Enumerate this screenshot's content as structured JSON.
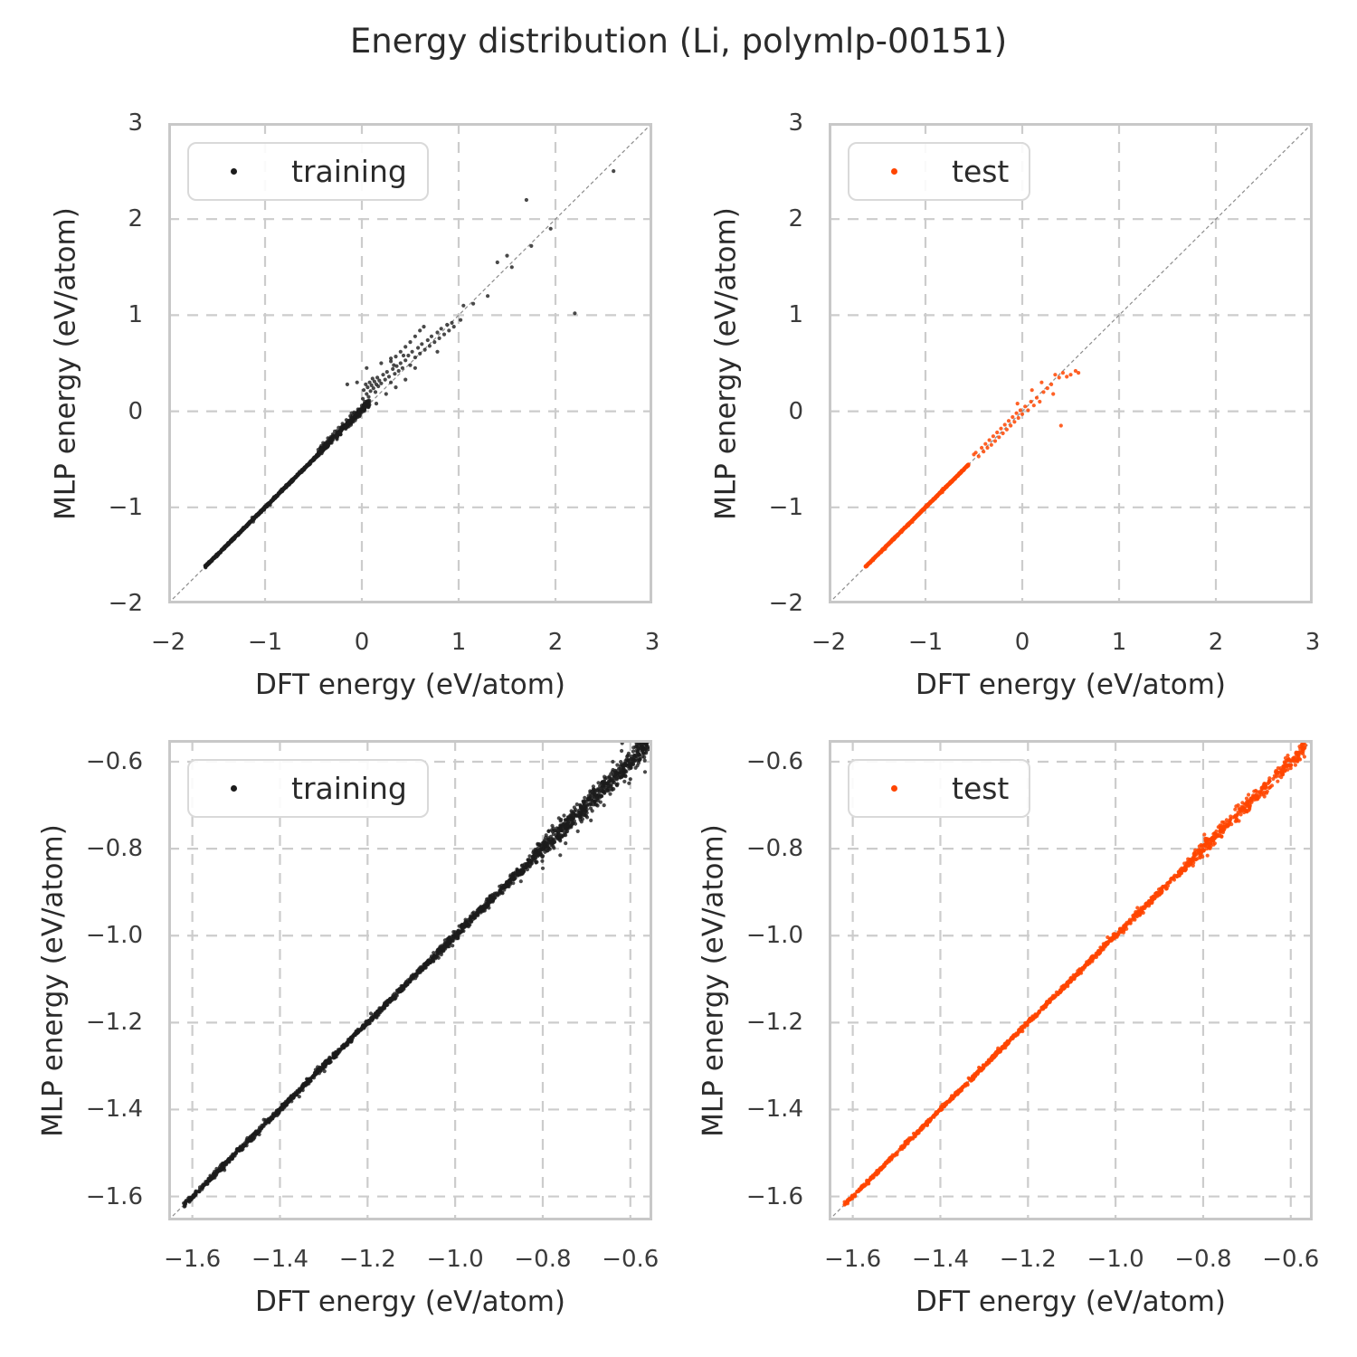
{
  "title": "Energy distribution (Li, polymlp-00151)",
  "styles": {
    "background": "#ffffff",
    "text_color": "#2b2b2b",
    "tick_color": "#3b3b3b",
    "grid_color": "#cccccc",
    "spine_color": "#c8c8c8",
    "identity_color": "#8c8c8c",
    "legend_border": "#d9d9d9",
    "training_color": "#1c1c1c",
    "test_color": "#ff4500"
  },
  "chart_data": [
    {
      "id": "top-left",
      "type": "scatter",
      "legend_label": "training",
      "color": "#1c1c1c",
      "opacity": 0.8,
      "xlabel": "DFT energy (eV/atom)",
      "ylabel": "MLP energy (eV/atom)",
      "xlim": [
        -2,
        3
      ],
      "ylim": [
        -2,
        3
      ],
      "xticks": [
        -2,
        -1,
        0,
        1,
        2,
        3
      ],
      "xtick_labels": [
        "−2",
        "−1",
        "0",
        "1",
        "2",
        "3"
      ],
      "yticks": [
        3,
        2,
        1,
        0,
        -1,
        -2
      ],
      "ytick_labels": [
        "3",
        "2",
        "1",
        "0",
        "−1",
        "−2"
      ],
      "grid": "dashed",
      "legend_position": "upper left",
      "identity_line": true,
      "seed": 42,
      "diagonal_bands": [
        {
          "from": -1.62,
          "to": -0.45,
          "count": 820,
          "jitter": 0.006
        },
        {
          "from": -0.45,
          "to": 0.08,
          "count": 270,
          "jitter": 0.02,
          "bias": 0.012
        }
      ],
      "points": [
        [
          -0.45,
          -0.4
        ],
        [
          -0.42,
          -0.36
        ],
        [
          -0.4,
          -0.33
        ],
        [
          -0.38,
          -0.36
        ],
        [
          -0.35,
          -0.28
        ],
        [
          -0.33,
          -0.3
        ],
        [
          -0.3,
          -0.24
        ],
        [
          -0.28,
          -0.21
        ],
        [
          -0.26,
          -0.25
        ],
        [
          -0.24,
          -0.17
        ],
        [
          -0.22,
          -0.2
        ],
        [
          -0.2,
          -0.13
        ],
        [
          -0.18,
          -0.16
        ],
        [
          -0.16,
          -0.09
        ],
        [
          -0.14,
          -0.12
        ],
        [
          -0.12,
          -0.05
        ],
        [
          -0.1,
          -0.08
        ],
        [
          -0.08,
          -0.01
        ],
        [
          -0.06,
          -0.04
        ],
        [
          -0.04,
          0.02
        ],
        [
          -0.02,
          -0.01
        ],
        [
          0,
          0.06
        ],
        [
          0.01,
          0.13
        ],
        [
          0.02,
          0.22
        ],
        [
          0.03,
          0.1
        ],
        [
          0.04,
          0.28
        ],
        [
          0.05,
          0.18
        ],
        [
          0.06,
          0.25
        ],
        [
          0.07,
          0.15
        ],
        [
          0.08,
          0.3
        ],
        [
          0.09,
          0.21
        ],
        [
          0.1,
          0.27
        ],
        [
          0.11,
          0.34
        ],
        [
          0.12,
          0.24
        ],
        [
          0.13,
          0.31
        ],
        [
          0.14,
          0.2
        ],
        [
          0.15,
          0.28
        ],
        [
          0.16,
          0.35
        ],
        [
          0.17,
          0.26
        ],
        [
          0.18,
          0.32
        ],
        [
          0.2,
          0.29
        ],
        [
          0.22,
          0.38
        ],
        [
          0.24,
          0.33
        ],
        [
          0.26,
          0.41
        ],
        [
          0.28,
          0.36
        ],
        [
          0.3,
          0.3
        ],
        [
          0.32,
          0.44
        ],
        [
          0.34,
          0.39
        ],
        [
          0.36,
          0.47
        ],
        [
          0.38,
          0.42
        ],
        [
          0.4,
          0.5
        ],
        [
          0.42,
          0.45
        ],
        [
          0.45,
          0.53
        ],
        [
          0.48,
          0.58
        ],
        [
          0.5,
          0.48
        ],
        [
          0.52,
          0.62
        ],
        [
          0.55,
          0.56
        ],
        [
          0.58,
          0.66
        ],
        [
          0.6,
          0.6
        ],
        [
          0.62,
          0.7
        ],
        [
          0.65,
          0.64
        ],
        [
          0.68,
          0.74
        ],
        [
          0.7,
          0.68
        ],
        [
          0.72,
          0.78
        ],
        [
          0.75,
          0.72
        ],
        [
          0.78,
          0.82
        ],
        [
          0.8,
          0.76
        ],
        [
          0.82,
          0.86
        ],
        [
          0.85,
          0.8
        ],
        [
          0.88,
          0.9
        ],
        [
          0.9,
          0.84
        ],
        [
          0.93,
          0.92
        ],
        [
          0.95,
          0.88
        ],
        [
          0.25,
          0.18
        ],
        [
          0.35,
          0.25
        ],
        [
          0.55,
          0.45
        ],
        [
          0.78,
          0.62
        ],
        [
          0.15,
          0.08
        ],
        [
          0.45,
          0.33
        ],
        [
          -0.15,
          0.28
        ],
        [
          -0.05,
          0.3
        ],
        [
          0.05,
          0.45
        ],
        [
          0.3,
          0.55
        ],
        [
          0.2,
          0.5
        ],
        [
          0.3,
          0.52
        ],
        [
          0.35,
          0.57
        ],
        [
          0.4,
          0.62
        ],
        [
          0.45,
          0.67
        ],
        [
          0.5,
          0.72
        ],
        [
          0.55,
          0.78
        ],
        [
          0.6,
          0.84
        ],
        [
          0.64,
          0.88
        ],
        [
          0.33,
          0.48
        ],
        [
          0.43,
          0.58
        ],
        [
          1.02,
          0.95
        ],
        [
          1.05,
          1.1
        ],
        [
          1.15,
          1.12
        ],
        [
          1.3,
          1.2
        ],
        [
          1.4,
          1.55
        ],
        [
          1.5,
          1.62
        ],
        [
          1.55,
          1.5
        ],
        [
          1.7,
          2.2
        ],
        [
          1.75,
          1.72
        ],
        [
          1.95,
          1.9
        ],
        [
          2.2,
          1.02
        ],
        [
          2.6,
          2.5
        ]
      ]
    },
    {
      "id": "top-right",
      "type": "scatter",
      "legend_label": "test",
      "color": "#ff4500",
      "opacity": 0.85,
      "xlabel": "DFT energy (eV/atom)",
      "ylabel": "MLP energy (eV/atom)",
      "xlim": [
        -2,
        3
      ],
      "ylim": [
        -2,
        3
      ],
      "xticks": [
        -2,
        -1,
        0,
        1,
        2,
        3
      ],
      "xtick_labels": [
        "−2",
        "−1",
        "0",
        "1",
        "2",
        "3"
      ],
      "yticks": [
        3,
        2,
        1,
        0,
        -1,
        -2
      ],
      "ytick_labels": [
        "3",
        "2",
        "1",
        "0",
        "−1",
        "−2"
      ],
      "grid": "dashed",
      "legend_position": "upper left",
      "identity_line": true,
      "seed": 7,
      "diagonal_bands": [
        {
          "from": -1.62,
          "to": -0.55,
          "count": 820,
          "jitter": 0.004
        }
      ],
      "points": [
        [
          -0.5,
          -0.45
        ],
        [
          -0.48,
          -0.43
        ],
        [
          -0.45,
          -0.47
        ],
        [
          -0.42,
          -0.38
        ],
        [
          -0.4,
          -0.42
        ],
        [
          -0.38,
          -0.34
        ],
        [
          -0.36,
          -0.38
        ],
        [
          -0.34,
          -0.3
        ],
        [
          -0.32,
          -0.35
        ],
        [
          -0.3,
          -0.26
        ],
        [
          -0.28,
          -0.31
        ],
        [
          -0.26,
          -0.22
        ],
        [
          -0.24,
          -0.27
        ],
        [
          -0.22,
          -0.18
        ],
        [
          -0.2,
          -0.23
        ],
        [
          -0.18,
          -0.14
        ],
        [
          -0.16,
          -0.19
        ],
        [
          -0.14,
          -0.1
        ],
        [
          -0.12,
          -0.15
        ],
        [
          -0.1,
          -0.06
        ],
        [
          -0.08,
          -0.11
        ],
        [
          -0.06,
          -0.02
        ],
        [
          -0.04,
          -0.07
        ],
        [
          -0.02,
          0.01
        ],
        [
          0,
          -0.03
        ],
        [
          0.03,
          0.05
        ],
        [
          0.06,
          0.01
        ],
        [
          0.09,
          0.1
        ],
        [
          0.12,
          0.06
        ],
        [
          0.15,
          0.14
        ],
        [
          0.18,
          0.1
        ],
        [
          0.22,
          0.2
        ],
        [
          0.26,
          0.24
        ],
        [
          0.3,
          0.28
        ],
        [
          0.34,
          0.38
        ],
        [
          0.38,
          0.35
        ],
        [
          0.42,
          0.4
        ],
        [
          0.46,
          0.36
        ],
        [
          0.5,
          0.38
        ],
        [
          0.55,
          0.42
        ],
        [
          0.4,
          -0.15
        ],
        [
          0.2,
          0.3
        ],
        [
          0.1,
          0.22
        ],
        [
          -0.05,
          0.08
        ],
        [
          0.58,
          0.4
        ],
        [
          0.32,
          0.18
        ]
      ]
    },
    {
      "id": "bottom-left",
      "type": "scatter",
      "legend_label": "training",
      "color": "#1c1c1c",
      "opacity": 0.8,
      "xlabel": "DFT energy (eV/atom)",
      "ylabel": "MLP energy (eV/atom)",
      "xlim": [
        -1.655,
        -0.55
      ],
      "ylim": [
        -1.655,
        -0.55
      ],
      "xticks": [
        -1.6,
        -1.4,
        -1.2,
        -1.0,
        -0.8,
        -0.6
      ],
      "xtick_labels": [
        "−1.6",
        "−1.4",
        "−1.2",
        "−1.0",
        "−0.8",
        "−0.6"
      ],
      "yticks": [
        -0.6,
        -0.8,
        -1.0,
        -1.2,
        -1.4,
        -1.6
      ],
      "ytick_labels": [
        "−0.6",
        "−0.8",
        "−1.0",
        "−1.2",
        "−1.4",
        "−1.6"
      ],
      "grid": "dashed",
      "legend_position": "upper left",
      "identity_line": true,
      "seed": 13,
      "diagonal_bands": [
        {
          "from": -1.62,
          "to": -1.05,
          "count": 900,
          "jitter": 0.0035
        },
        {
          "from": -1.05,
          "to": -0.82,
          "count": 400,
          "jitter": 0.006
        },
        {
          "from": -0.82,
          "to": -0.558,
          "count": 560,
          "jitter": 0.013
        }
      ],
      "points": [
        [
          -0.76,
          -0.815
        ],
        [
          -0.69,
          -0.735
        ],
        [
          -0.62,
          -0.575
        ],
        [
          -0.6,
          -0.64
        ],
        [
          -0.66,
          -0.7
        ],
        [
          -0.58,
          -0.545
        ],
        [
          -0.64,
          -0.6
        ],
        [
          -0.72,
          -0.76
        ],
        [
          -0.8,
          -0.845
        ],
        [
          -0.85,
          -0.875
        ],
        [
          -0.57,
          -0.56
        ],
        [
          -0.559,
          -0.553
        ]
      ]
    },
    {
      "id": "bottom-right",
      "type": "scatter",
      "legend_label": "test",
      "color": "#ff4500",
      "opacity": 0.85,
      "xlabel": "DFT energy (eV/atom)",
      "ylabel": "MLP energy (eV/atom)",
      "xlim": [
        -1.655,
        -0.55
      ],
      "ylim": [
        -1.655,
        -0.55
      ],
      "xticks": [
        -1.6,
        -1.4,
        -1.2,
        -1.0,
        -0.8,
        -0.6
      ],
      "xtick_labels": [
        "−1.6",
        "−1.4",
        "−1.2",
        "−1.0",
        "−0.8",
        "−0.6"
      ],
      "yticks": [
        -0.6,
        -0.8,
        -1.0,
        -1.2,
        -1.4,
        -1.6
      ],
      "ytick_labels": [
        "−0.6",
        "−0.8",
        "−1.0",
        "−1.2",
        "−1.4",
        "−1.6"
      ],
      "grid": "dashed",
      "legend_position": "upper left",
      "identity_line": true,
      "seed": 99,
      "diagonal_bands": [
        {
          "from": -1.62,
          "to": -1.05,
          "count": 750,
          "jitter": 0.0025
        },
        {
          "from": -1.05,
          "to": -0.82,
          "count": 280,
          "jitter": 0.0045
        },
        {
          "from": -0.82,
          "to": -0.565,
          "count": 320,
          "jitter": 0.009
        }
      ],
      "points": [
        [
          -0.72,
          -0.7
        ],
        [
          -0.66,
          -0.68
        ],
        [
          -0.6,
          -0.615
        ],
        [
          -0.58,
          -0.565
        ],
        [
          -0.63,
          -0.645
        ],
        [
          -0.77,
          -0.76
        ],
        [
          -0.7,
          -0.715
        ],
        [
          -0.82,
          -0.81
        ],
        [
          -0.57,
          -0.558
        ]
      ]
    }
  ]
}
